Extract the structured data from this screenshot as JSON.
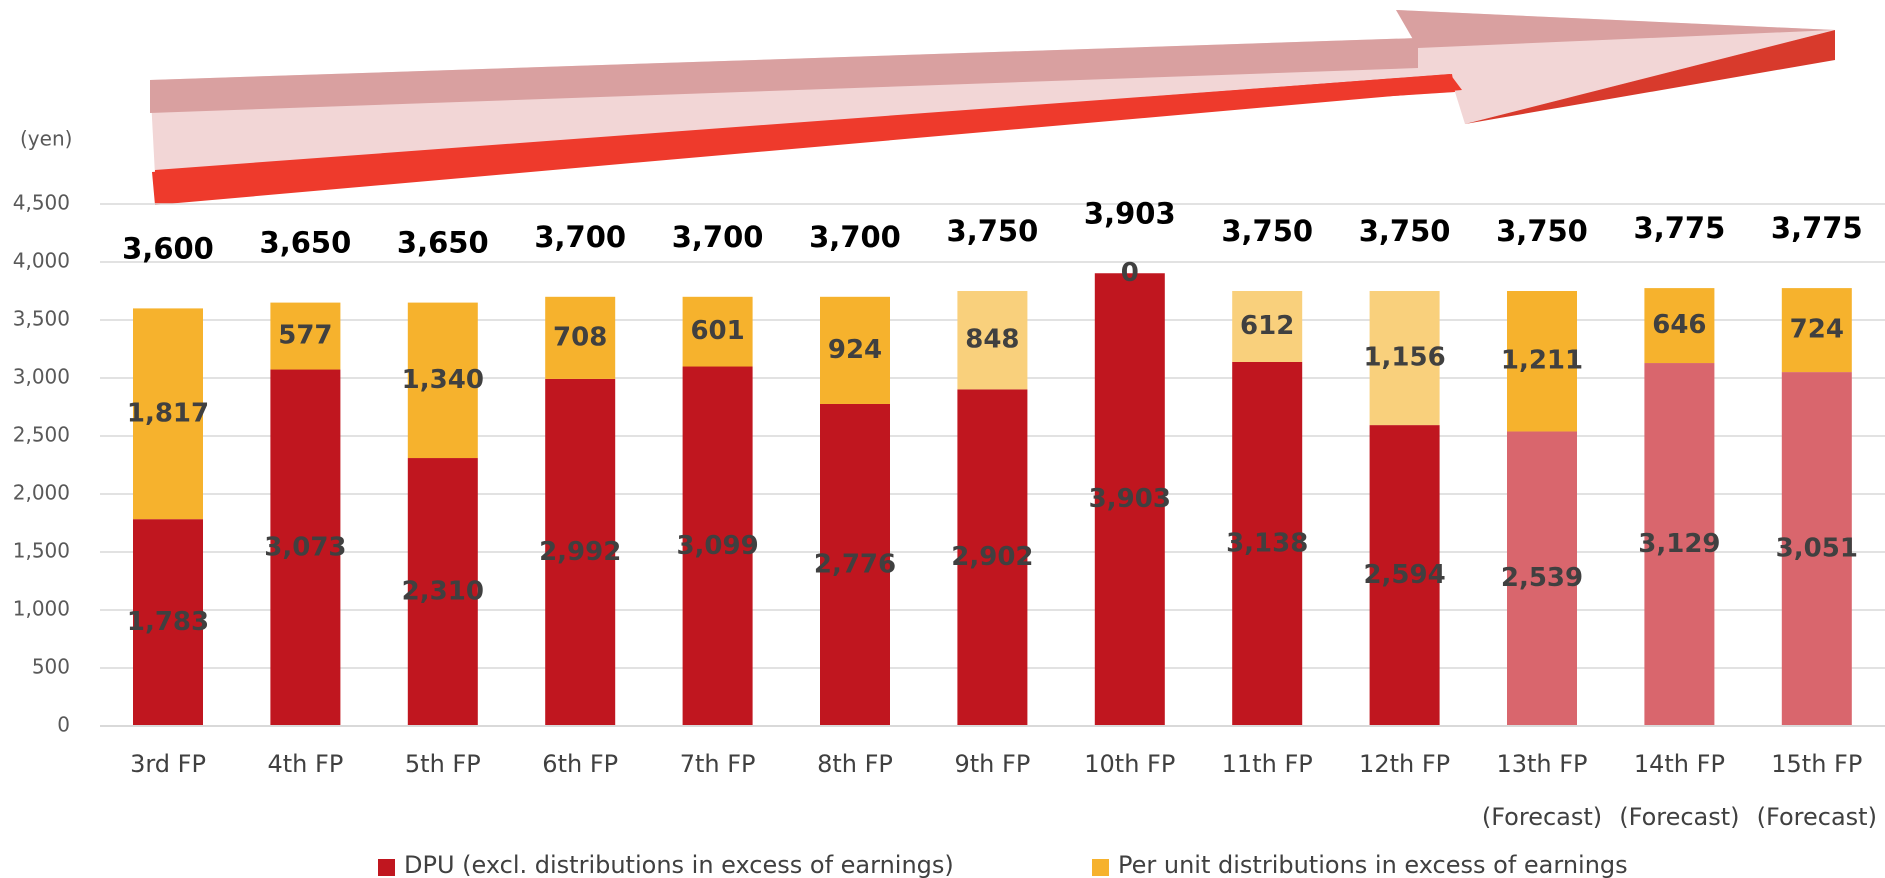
{
  "chart_data": {
    "type": "stacked_bar",
    "y_axis_label": "(yen)",
    "categories": [
      "3rd FP",
      "4th FP",
      "5th FP",
      "6th FP",
      "7th FP",
      "8th FP",
      "9th FP",
      "10th FP",
      "11th FP",
      "12th FP",
      "13th FP",
      "14th FP",
      "15th FP"
    ],
    "category_notes": [
      null,
      null,
      null,
      null,
      null,
      null,
      null,
      null,
      null,
      null,
      "(Forecast)",
      "(Forecast)",
      "(Forecast)"
    ],
    "series": [
      {
        "name": "DPU (excl. distributions in excess of earnings)",
        "color": "#c0161f",
        "colors": [
          "#c0161f",
          "#c0161f",
          "#c0161f",
          "#c0161f",
          "#c0161f",
          "#c0161f",
          "#c0161f",
          "#c0161f",
          "#c0161f",
          "#c0161f",
          "#d9666d",
          "#d9666d",
          "#d9666d"
        ],
        "values": [
          1783,
          3073,
          2310,
          2992,
          3099,
          2776,
          2902,
          3903,
          3138,
          2594,
          2539,
          3129,
          3051
        ],
        "value_labels": [
          "1,783",
          "3,073",
          "2,310",
          "2,992",
          "3,099",
          "2,776",
          "2,902",
          "3,903",
          "3,138",
          "2,594",
          "2,539",
          "3,129",
          "3,051"
        ]
      },
      {
        "name": "Per unit distributions in excess of earnings",
        "color": "#f6b22d",
        "colors": [
          "#f6b22d",
          "#f6b22d",
          "#f6b22d",
          "#f6b22d",
          "#f6b22d",
          "#f6b22d",
          "#f9d07c",
          "#f6b22d",
          "#f9d07c",
          "#f9d07c",
          "#f6b22d",
          "#f6b22d",
          "#f6b22d"
        ],
        "values": [
          1817,
          577,
          1340,
          708,
          601,
          924,
          848,
          0,
          612,
          1156,
          1211,
          646,
          724
        ],
        "value_labels": [
          "1,817",
          "577",
          "1,340",
          "708",
          "601",
          "924",
          "848",
          "0",
          "612",
          "1,156",
          "1,211",
          "646",
          "724"
        ]
      }
    ],
    "totals": {
      "values": [
        3600,
        3650,
        3650,
        3700,
        3700,
        3700,
        3750,
        3903,
        3750,
        3750,
        3750,
        3775,
        3775
      ],
      "value_labels": [
        "3,600",
        "3,650",
        "3,650",
        "3,700",
        "3,700",
        "3,700",
        "3,750",
        "3,903",
        "3,750",
        "3,750",
        "3,750",
        "3,775",
        "3,775"
      ]
    },
    "ylim": [
      0,
      4500
    ],
    "yticks": [
      0,
      500,
      {
        "value": 1000,
        "label": "1,000"
      },
      {
        "value": 1500,
        "label": "1,500"
      },
      {
        "value": 2000,
        "label": "2,000"
      },
      {
        "value": 2500,
        "label": "2,500"
      },
      {
        "value": 3000,
        "label": "3,000"
      },
      {
        "value": 3500,
        "label": "3,500"
      },
      {
        "value": 4000,
        "label": "4,000"
      },
      {
        "value": 4500,
        "label": "4,500"
      }
    ],
    "grid": true,
    "legend": "bottom"
  }
}
